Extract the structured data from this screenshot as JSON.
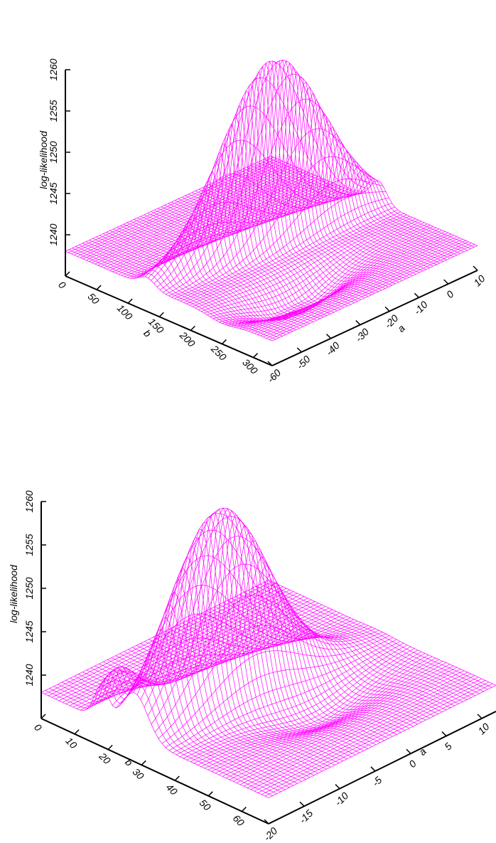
{
  "chart_data": [
    {
      "type": "surface",
      "title": "",
      "zlabel": "log-likelihood",
      "xlabel": "b",
      "ylabel": "a",
      "z_ticks": [
        "1240",
        "1245",
        "1250",
        "1255",
        "1260"
      ],
      "x_ticks": [
        "0",
        "50",
        "100",
        "150",
        "200",
        "250",
        "300"
      ],
      "y_ticks": [
        "-60",
        "-50",
        "-40",
        "-30",
        "-20",
        "-10",
        "0",
        "10"
      ],
      "xlim": [
        0,
        330
      ],
      "ylim": [
        -60,
        10
      ],
      "zlim": [
        1235,
        1260
      ],
      "plateau_z": 1238,
      "peak_z": 1260,
      "color": "#ff00ff",
      "grid": false,
      "legend": "none"
    },
    {
      "type": "surface",
      "title": "",
      "zlabel": "log-likelihood",
      "xlabel": "b",
      "ylabel": "a",
      "z_ticks": [
        "1240",
        "1245",
        "1250",
        "1255",
        "1260"
      ],
      "x_ticks": [
        "0",
        "10",
        "20",
        "30",
        "40",
        "50",
        "60"
      ],
      "y_ticks": [
        "-20",
        "-15",
        "-10",
        "-5",
        "0",
        "5",
        "10"
      ],
      "xlim": [
        0,
        68
      ],
      "ylim": [
        -20,
        12
      ],
      "zlim": [
        1235,
        1260
      ],
      "plateau_z": 1238,
      "peak_z": 1260,
      "color": "#ff00ff",
      "grid": false,
      "legend": "none"
    }
  ]
}
